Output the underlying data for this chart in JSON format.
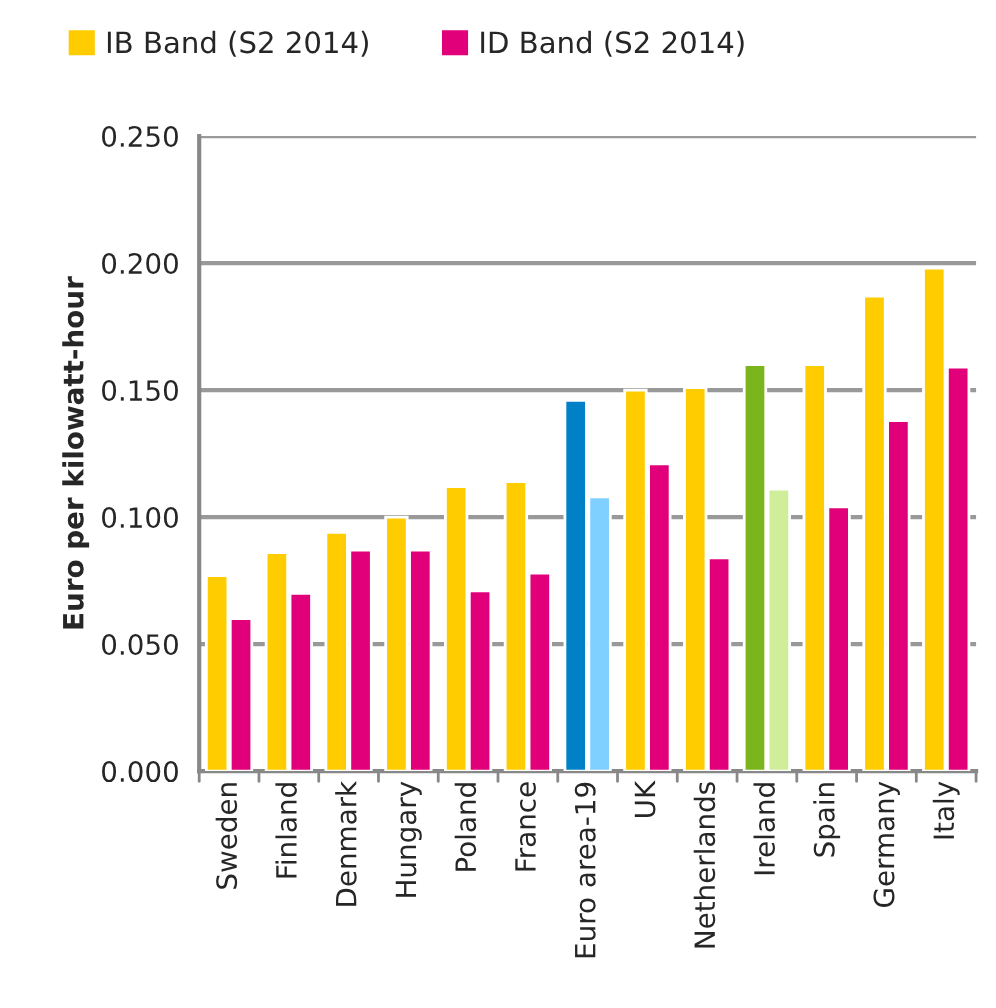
{
  "chart_data": {
    "type": "bar",
    "ylabel": "Euro per kilowatt-hour",
    "categories": [
      "Sweden",
      "Finland",
      "Denmark",
      "Hungary",
      "Poland",
      "France",
      "Euro area-19",
      "UK",
      "Netherlands",
      "Ireland",
      "Spain",
      "Germany",
      "Italy"
    ],
    "series": [
      {
        "name": "IB Band (S2 2014)",
        "color": "#ffcc00",
        "colors": [
          "#ffcc00",
          "#ffcc00",
          "#ffcc00",
          "#ffcc00",
          "#ffcc00",
          "#ffcc00",
          "#0080c6",
          "#ffcc00",
          "#ffcc00",
          "#7ab51d",
          "#ffcc00",
          "#ffcc00",
          "#ffcc00"
        ],
        "values": [
          0.077,
          0.086,
          0.094,
          0.1,
          0.112,
          0.114,
          0.146,
          0.15,
          0.151,
          0.16,
          0.16,
          0.187,
          0.198
        ]
      },
      {
        "name": "ID Band (S2 2014)",
        "color": "#e2007a",
        "colors": [
          "#e2007a",
          "#e2007a",
          "#e2007a",
          "#e2007a",
          "#e2007a",
          "#e2007a",
          "#80d0ff",
          "#e2007a",
          "#e2007a",
          "#d0ee9a",
          "#e2007a",
          "#e2007a",
          "#e2007a"
        ],
        "values": [
          0.06,
          0.07,
          0.087,
          0.087,
          0.071,
          0.078,
          0.108,
          0.121,
          0.084,
          0.111,
          0.104,
          0.138,
          0.159
        ]
      }
    ],
    "ylim": [
      0,
      0.25
    ],
    "yticks": [
      {
        "value": 0,
        "label": "0.000"
      },
      {
        "value": 0.05,
        "label": "0.050"
      },
      {
        "value": 0.1,
        "label": "0.100"
      },
      {
        "value": 0.15,
        "label": "0.150"
      },
      {
        "value": 0.2,
        "label": "0.200"
      },
      {
        "value": 0.25,
        "label": "0.250"
      }
    ],
    "grid": "y",
    "legend": "top left"
  }
}
